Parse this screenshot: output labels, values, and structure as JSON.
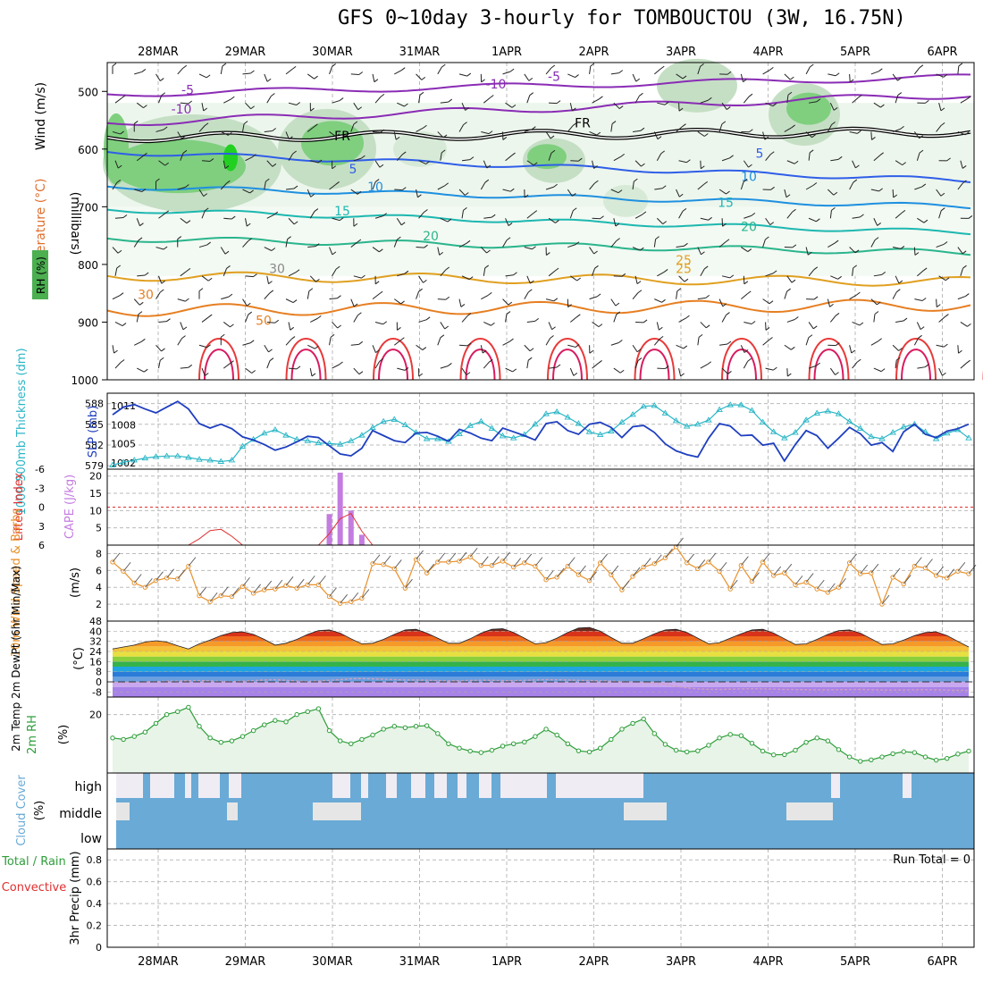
{
  "title": "GFS 0~10day 3-hourly for TOMBOUCTOU (3W, 16.75N)",
  "dates": [
    "28MAR",
    "29MAR",
    "30MAR",
    "31MAR",
    "1APR",
    "2APR",
    "3APR",
    "4APR",
    "5APR",
    "6APR"
  ],
  "run_total": "Run Total = 0",
  "colors": {
    "rh_green": "#4caf50",
    "slp": "#1f3fbf",
    "thickness": "#29b6c6",
    "wind": "#e8912b",
    "rh2m": "#2e9e3a",
    "cloud": "#6aaad6",
    "cape": "#c47ce0",
    "li": "#e03030"
  },
  "panels": {
    "upper": {
      "ylabel": "(millibars)",
      "left_labels": [
        "RH (%)",
        "Temperature (°C)",
        "Wind (m/s)"
      ],
      "yticks": [
        "500",
        "600",
        "700",
        "800",
        "900",
        "1000"
      ],
      "contour_labels": [
        "-10",
        "-5",
        "FR",
        "5",
        "10",
        "15",
        "20",
        "25",
        "30",
        "50",
        "30",
        "-10",
        "-5",
        "FR",
        "5",
        "10",
        "15",
        "20",
        "25"
      ]
    },
    "slp": {
      "left_label": "1000-500mb Thickness (dm)",
      "right_label": "SLP (mb)",
      "thick_ticks": [
        "588",
        "585",
        "582",
        "579"
      ],
      "slp_ticks": [
        "1011",
        "1008",
        "1005",
        "1002"
      ]
    },
    "cape": {
      "left_label": "Lifted Index",
      "right_label": "CAPE (J/kg)",
      "li_ticks": [
        "-6",
        "-3",
        "0",
        "3",
        "6"
      ],
      "cape_ticks": [
        "20",
        "15",
        "10",
        "5"
      ]
    },
    "wind10": {
      "label": "10m Wind Speed & Barbs",
      "unit": "(m/s)",
      "ticks": [
        "8",
        "6",
        "4",
        "2"
      ]
    },
    "temp2m": {
      "label": "2m Temp 2m DewPt (6hr Min/Max)",
      "unit": "(°C)",
      "ticks": [
        "48",
        "40",
        "32",
        "24",
        "16",
        "8",
        "0",
        "-8"
      ]
    },
    "rh2m": {
      "label": "2m RH",
      "unit": "(%)",
      "ticks": [
        "20"
      ]
    },
    "cloud": {
      "label": "Cloud Cover",
      "unit": "(%)",
      "levels": [
        "high",
        "middle",
        "low"
      ]
    },
    "precip": {
      "label": "3hr Precip (mm)",
      "series_labels": [
        "Total / Rain",
        "Convective"
      ],
      "ticks": [
        "0.8",
        "0.6",
        "0.4",
        "0.2",
        "0"
      ]
    }
  },
  "chart_data": [
    {
      "type": "line",
      "title": "SLP (mb)",
      "x_count": 80,
      "ylim": [
        1001,
        1013
      ],
      "values": [
        1009.6,
        1010.8,
        1011.2,
        1010.5,
        1009.9,
        1010.8,
        1011.7,
        1010.5,
        1008.2,
        1007.5,
        1008.1,
        1007.4,
        1006.1,
        1005.6,
        1004.9,
        1004.0,
        1004.5,
        1005.3,
        1006.2,
        1006.0,
        1004.7,
        1003.4,
        1003.1,
        1004.3,
        1007.1,
        1006.3,
        1005.5,
        1005.2,
        1006.7,
        1006.8,
        1006.2,
        1005.4,
        1007.3,
        1006.7,
        1005.9,
        1005.5,
        1007.5,
        1006.9,
        1006.3,
        1005.6,
        1008.2,
        1008.5,
        1007.1,
        1006.5,
        1008.1,
        1008.4,
        1007.6,
        1006.0,
        1007.7,
        1007.9,
        1006.8,
        1005.0,
        1003.9,
        1003.3,
        1002.9,
        1005.9,
        1008.2,
        1007.8,
        1006.3,
        1006.4,
        1004.8,
        1005.1,
        1002.3,
        1004.9,
        1007.1,
        1006.3,
        1004.3,
        1005.9,
        1007.6,
        1006.6,
        1004.8,
        1005.2,
        1003.8,
        1006.9,
        1008.1,
        1006.5,
        1006.0,
        1007.0,
        1007.4,
        1008.1
      ]
    },
    {
      "type": "line",
      "title": "1000-500mb Thickness (dm)",
      "x_count": 80,
      "ylim": [
        578.5,
        589.5
      ],
      "values": [
        579.1,
        579.5,
        579.8,
        580.1,
        580.3,
        580.4,
        580.4,
        580.2,
        579.9,
        579.8,
        579.6,
        579.8,
        581.8,
        582.8,
        583.7,
        584.2,
        583.4,
        582.8,
        582.6,
        582.3,
        582.2,
        582.1,
        582.6,
        583.4,
        584.5,
        585.4,
        585.7,
        584.9,
        583.8,
        582.9,
        582.9,
        582.5,
        583.6,
        584.8,
        585.4,
        584.4,
        583.3,
        583.0,
        583.5,
        585.0,
        586.5,
        586.8,
        586.0,
        585.1,
        583.9,
        583.5,
        584.0,
        585.3,
        586.4,
        587.6,
        587.7,
        586.6,
        585.5,
        584.7,
        585.0,
        585.6,
        587.1,
        587.8,
        587.8,
        587.0,
        585.3,
        583.9,
        583.0,
        583.8,
        585.6,
        586.6,
        586.9,
        586.5,
        585.4,
        584.4,
        583.2,
        582.9,
        583.8,
        584.6,
        585.0,
        583.9,
        582.9,
        583.7,
        584.2,
        583.0
      ]
    },
    {
      "type": "bar",
      "title": "CAPE (J/kg)",
      "x": [
        20,
        21,
        22,
        23
      ],
      "values": [
        9,
        21,
        10,
        3
      ],
      "ylim": [
        0,
        22
      ]
    },
    {
      "type": "line",
      "title": "Lifted Index",
      "x_count": 80,
      "ylim": [
        -6,
        6
      ],
      "values": [
        6.5,
        6.5,
        6.5,
        6.5,
        6.5,
        6.5,
        6.5,
        6.5,
        5.0,
        3.7,
        3.5,
        4.6,
        6.5,
        6.5,
        6.5,
        6.5,
        6.5,
        6.5,
        6.5,
        6.5,
        4.2,
        1.8,
        1.0,
        3.8,
        6.5,
        6.5,
        6.5,
        6.5,
        6.5,
        6.5,
        6.5,
        6.5,
        6.5,
        6.5,
        6.5,
        6.5,
        6.5,
        6.5,
        6.5,
        6.5,
        6.5,
        6.5,
        6.5,
        6.5,
        6.5,
        6.5,
        6.5,
        6.5,
        6.5,
        6.5,
        6.5,
        6.5,
        6.5,
        6.5,
        6.5,
        6.5,
        6.5,
        6.5,
        6.5,
        6.5,
        6.5,
        6.5,
        6.5,
        6.5,
        6.5,
        6.5,
        6.5,
        6.5,
        6.5,
        6.5,
        6.5,
        6.5,
        6.5,
        6.5,
        6.5,
        6.5,
        6.5,
        6.5,
        6.5,
        6.5
      ]
    },
    {
      "type": "line",
      "title": "10m Wind Speed",
      "x_count": 80,
      "ylim": [
        0,
        9
      ],
      "values": [
        7.0,
        5.9,
        4.5,
        4.0,
        4.8,
        5.1,
        5.0,
        6.5,
        3.0,
        2.3,
        3.0,
        2.9,
        4.1,
        3.3,
        3.7,
        3.8,
        4.2,
        3.9,
        4.3,
        4.3,
        2.9,
        2.1,
        2.3,
        2.7,
        6.8,
        6.7,
        6.2,
        3.9,
        7.3,
        5.7,
        7.0,
        7.0,
        7.1,
        7.6,
        6.6,
        6.6,
        7.1,
        6.4,
        6.9,
        6.5,
        4.9,
        5.2,
        6.5,
        5.5,
        4.8,
        6.9,
        5.5,
        3.7,
        5.3,
        6.4,
        6.8,
        7.5,
        8.8,
        6.9,
        6.2,
        7.0,
        5.9,
        3.8,
        6.6,
        4.7,
        7.0,
        5.4,
        5.7,
        4.3,
        4.6,
        3.8,
        3.4,
        4.0,
        6.9,
        5.6,
        5.7,
        2.0,
        5.2,
        4.4,
        6.5,
        6.3,
        5.4,
        5.1,
        5.9,
        5.6
      ]
    },
    {
      "type": "area",
      "title": "2m Temp (°C)",
      "x_count": 80,
      "ylim": [
        -12,
        48
      ],
      "values": [
        26,
        27.5,
        29,
        31.5,
        32.5,
        31.5,
        28.5,
        26,
        30,
        33,
        36.5,
        39,
        39.5,
        37.5,
        33.5,
        29,
        30.5,
        33.5,
        37.5,
        40.5,
        41,
        38.5,
        34,
        30,
        30.5,
        33.5,
        37.5,
        41,
        41.5,
        38.5,
        34.5,
        30.5,
        30.5,
        34,
        38.5,
        41.5,
        42,
        39,
        34.5,
        30,
        31,
        34.5,
        39,
        42.5,
        43,
        40,
        35,
        30.5,
        30.5,
        34,
        38,
        41,
        41.5,
        39,
        34.5,
        30,
        31,
        34.5,
        38,
        41,
        41.5,
        38.5,
        34,
        29.5,
        30,
        33.5,
        37.5,
        40.5,
        41,
        38.5,
        34,
        29.5,
        30,
        33,
        36.5,
        39,
        39.5,
        36.5,
        32,
        27.5
      ]
    },
    {
      "type": "line",
      "title": "2m DewPt (°C)",
      "x_count": 80,
      "ylim": [
        -12,
        48
      ],
      "values": [
        -0.5,
        -0.4,
        -0.2,
        0,
        0.2,
        0.5,
        0.7,
        0.9,
        1.0,
        0.8,
        0.4,
        0.2,
        0.5,
        1.0,
        1.5,
        1.6,
        1.2,
        0.6,
        0.4,
        0.6,
        1.2,
        1.8,
        2.4,
        2.6,
        2.3,
        2.1,
        1.8,
        1.5,
        1.4,
        1.3,
        1.0,
        0.8,
        0.9,
        1.1,
        1.3,
        1.2,
        1.0,
        0.9,
        1.2,
        1.5,
        1.7,
        1.6,
        1.4,
        1.2,
        1.0,
        0.8,
        0.6,
        0.3,
        0,
        -0.4,
        -1.0,
        -2.0,
        -3.5,
        -4.8,
        -5.6,
        -5.9,
        -6.0,
        -5.8,
        -5.6,
        -5.5,
        -5.6,
        -5.8,
        -6.0,
        -6.1,
        -6.2,
        -6.3,
        -6.3,
        -6.2,
        -6.1,
        -6.0,
        -6.2,
        -6.4,
        -6.5,
        -6.4,
        -6.3,
        -6.2,
        -6.3,
        -6.5,
        -6.7,
        -6.8
      ]
    },
    {
      "type": "line",
      "title": "2m RH (%)",
      "x_count": 80,
      "ylim": [
        0,
        26
      ],
      "values": [
        12,
        11.5,
        12.5,
        14,
        17,
        20,
        21,
        22.5,
        16,
        12,
        10.5,
        11,
        12.5,
        14.5,
        16.5,
        18,
        17.5,
        20,
        21,
        22,
        14.5,
        11,
        10,
        11.5,
        13,
        15,
        16,
        15.5,
        16,
        16.2,
        13.5,
        10,
        8.5,
        7.5,
        7,
        7.8,
        9.2,
        10,
        10.6,
        12.5,
        15,
        13,
        10,
        7.6,
        7.2,
        8.5,
        11.5,
        15,
        17,
        18.5,
        13.5,
        9.8,
        7.8,
        7.2,
        7.6,
        9.5,
        12,
        13.2,
        12.8,
        10.2,
        7.5,
        6.2,
        6.3,
        7.8,
        10.5,
        12,
        11,
        8,
        5.5,
        4,
        4.5,
        5.5,
        6.6,
        7.3,
        7,
        5.5,
        4.4,
        5,
        6.5,
        7.5
      ]
    },
    {
      "type": "bar",
      "title": "3hr Precip (mm)",
      "values": [],
      "ylim": [
        0,
        0.9
      ]
    }
  ]
}
